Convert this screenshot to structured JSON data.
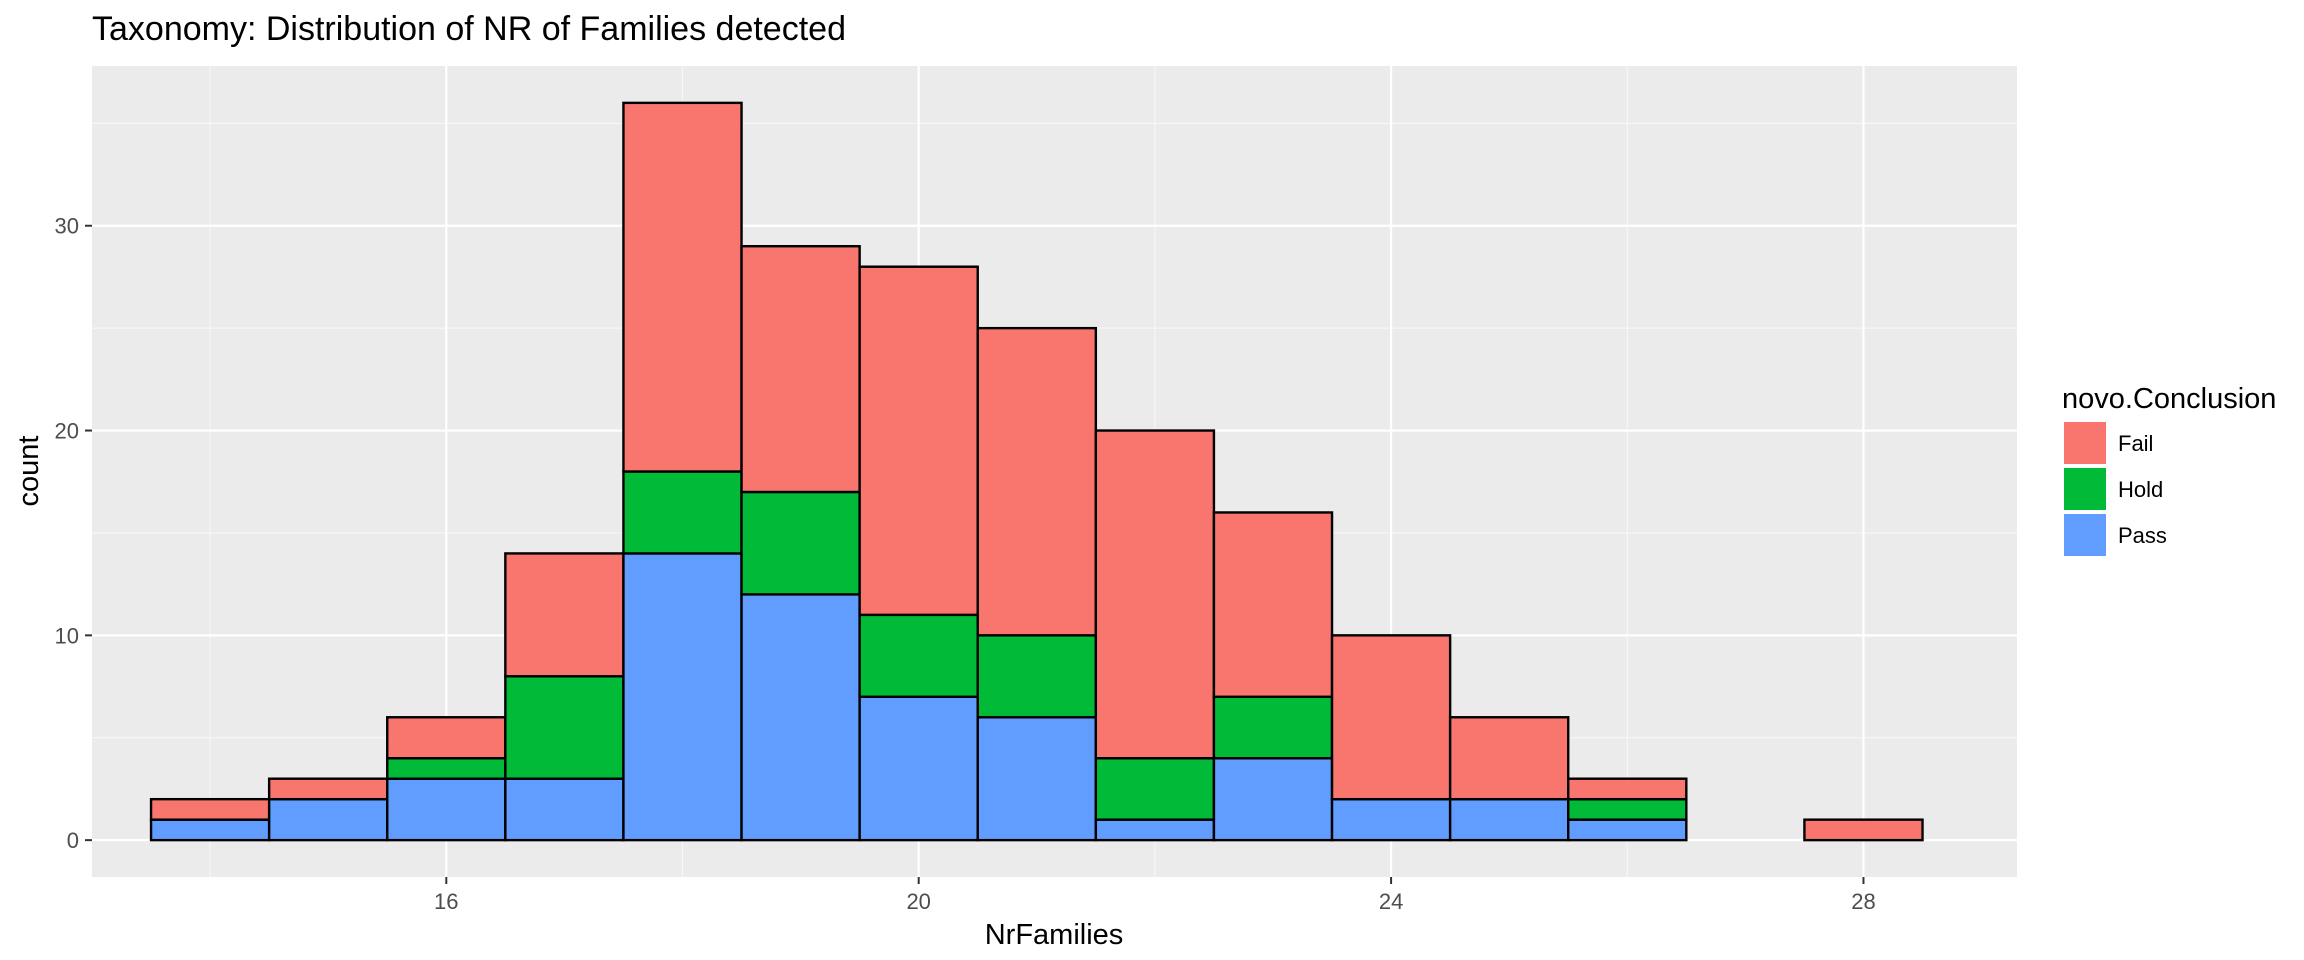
{
  "chart_data": {
    "type": "bar",
    "subtype": "stacked-histogram",
    "title": "Taxonomy: Distribution of NR of Families detected",
    "xlabel": "NrFamilies",
    "ylabel": "count",
    "xlim": [
      13,
      29.3
    ],
    "ylim": [
      -1.8,
      37.8
    ],
    "x_ticks": [
      16,
      20,
      24,
      28
    ],
    "y_ticks": [
      0,
      10,
      20,
      30
    ],
    "grid": true,
    "bin_width": 1,
    "x": [
      14,
      15,
      16,
      17,
      18,
      19,
      20,
      21,
      22,
      23,
      24,
      25,
      26,
      27,
      28
    ],
    "series": [
      {
        "name": "Pass",
        "color": "#619CFF",
        "values": [
          1,
          2,
          3,
          3,
          14,
          12,
          7,
          6,
          1,
          4,
          2,
          2,
          1,
          0,
          0
        ]
      },
      {
        "name": "Hold",
        "color": "#00BA38",
        "values": [
          0,
          0,
          1,
          5,
          4,
          5,
          4,
          4,
          3,
          3,
          0,
          0,
          1,
          0,
          0
        ]
      },
      {
        "name": "Fail",
        "color": "#F8766D",
        "values": [
          1,
          1,
          2,
          6,
          18,
          12,
          17,
          15,
          16,
          9,
          8,
          4,
          1,
          0,
          1
        ]
      }
    ],
    "legend": {
      "title": "novo.Conclusion",
      "position": "right",
      "entries": [
        "Fail",
        "Hold",
        "Pass"
      ]
    },
    "panel_color": "#EBEBEB",
    "grid_color": "#FFFFFF"
  }
}
